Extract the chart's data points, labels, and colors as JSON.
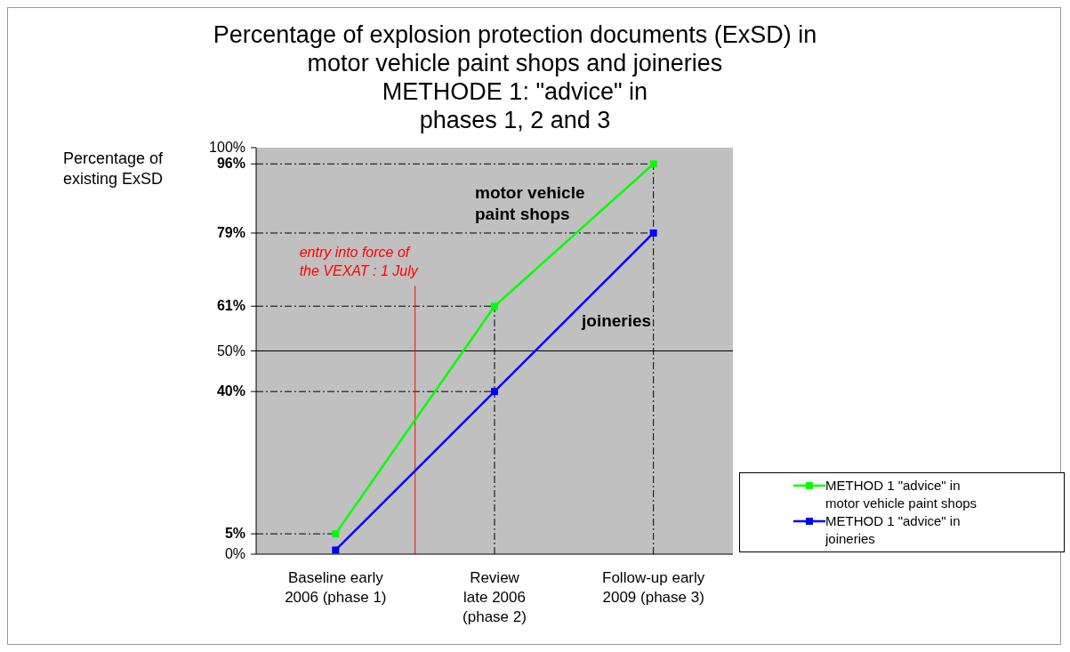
{
  "chart_data": {
    "type": "line",
    "title": "Percentage of explosion protection documents (ExSD) in\nmotor vehicle paint shops and joineries\nMETHODE 1: \"advice\" in\nphases 1, 2 and 3",
    "ylabel": "Percentage of\nexisting ExSD",
    "categories": [
      "Baseline early\n2006 (phase 1)",
      "Review\nlate  2006\n(phase 2)",
      "Follow-up early\n2009 (phase 3)"
    ],
    "series": [
      {
        "name": "METHOD 1 \"advice\" in\nmotor vehicle paint shops",
        "color": "#00ff00",
        "values": [
          5,
          61,
          96
        ]
      },
      {
        "name": "METHOD 1 \"advice\" in\njoineries",
        "color": "#0000ff",
        "values": [
          1,
          40,
          79
        ]
      }
    ],
    "ylim": [
      0,
      100
    ],
    "yticks": [
      {
        "value": 0,
        "label": "0%"
      },
      {
        "value": 5,
        "label": "5%"
      },
      {
        "value": 40,
        "label": "40%"
      },
      {
        "value": 50,
        "label": "50%"
      },
      {
        "value": 61,
        "label": "61%"
      },
      {
        "value": 79,
        "label": "79%"
      },
      {
        "value": 96,
        "label": "96%"
      },
      {
        "value": 100,
        "label": "100%"
      }
    ],
    "ref_lines": [
      {
        "axis": "y",
        "value": 50,
        "color": "#000000",
        "line_style": "solid"
      },
      {
        "axis": "y",
        "value": 96,
        "color": "#000000",
        "line_style": "dashdot"
      },
      {
        "axis": "y",
        "value": 79,
        "color": "#000000",
        "line_style": "dashdot"
      },
      {
        "axis": "y",
        "value": 61,
        "color": "#000000",
        "line_style": "dashdot"
      },
      {
        "axis": "y",
        "value": 40,
        "color": "#000000",
        "line_style": "dashdot"
      },
      {
        "axis": "y",
        "value": 5,
        "color": "#000000",
        "line_style": "dashdot"
      },
      {
        "axis": "x",
        "value": "Review\nlate  2006\n(phase 2)",
        "color": "#000000",
        "line_style": "dashdot"
      },
      {
        "axis": "x",
        "value": "Follow-up early\n2009 (phase 3)",
        "color": "#000000",
        "line_style": "dashdot"
      }
    ],
    "annotations": [
      "entry into force of\nthe VEXAT : 1 July",
      "motor vehicle\npaint shops",
      "joineries"
    ],
    "marker": "square",
    "line_style": "solid",
    "grid": false,
    "legend": "right"
  }
}
